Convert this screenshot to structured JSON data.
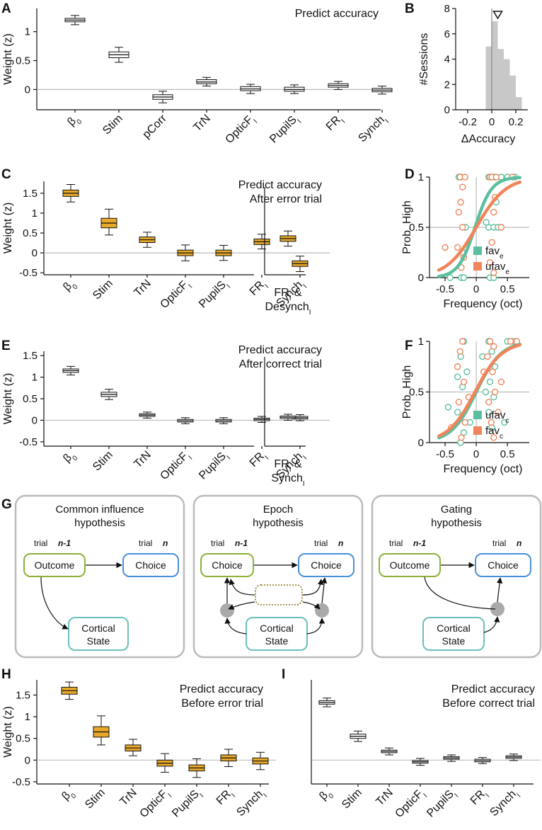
{
  "panel_letters": {
    "A": "A",
    "B": "B",
    "C": "C",
    "D": "D",
    "E": "E",
    "F": "F",
    "G": "G",
    "H": "H",
    "I": "I"
  },
  "colors": {
    "box_gray_fill": "#ffffff",
    "box_gold_fill": "#e8a92a",
    "hist_fill": "#c8c8c8",
    "fav_teal": "#5bbf9f",
    "ufav_orange": "#f0845a",
    "green_node": "#8cb13a",
    "blue_node": "#4a90d9",
    "cyan_node": "#6cc0bc",
    "olive_dots": "#8a7420",
    "panel_border": "#bbbbbb"
  },
  "chart_data": [
    {
      "id": "A",
      "type": "box",
      "title": "Predict accuracy",
      "ylabel": "Weight (z)",
      "ylim": [
        -0.35,
        1.4
      ],
      "yticks": [
        "0",
        "0.5",
        "1"
      ],
      "ytick_values": [
        0,
        0.5,
        1
      ],
      "fill": "white",
      "boxes": [
        {
          "base": "β",
          "sub": "0",
          "median": 1.2,
          "q1": 1.17,
          "q3": 1.23,
          "lo": 1.12,
          "hi": 1.28
        },
        {
          "base": "Stim",
          "sub": "",
          "median": 0.6,
          "q1": 0.55,
          "q3": 0.65,
          "lo": 0.47,
          "hi": 0.73
        },
        {
          "base": "pCorr",
          "sub": "",
          "median": -0.13,
          "q1": -0.17,
          "q3": -0.09,
          "lo": -0.23,
          "hi": -0.03
        },
        {
          "base": "TrN",
          "sub": "",
          "median": 0.13,
          "q1": 0.1,
          "q3": 0.17,
          "lo": 0.06,
          "hi": 0.21
        },
        {
          "base": "OpticF",
          "sub": "I",
          "median": 0.01,
          "q1": -0.02,
          "q3": 0.05,
          "lo": -0.07,
          "hi": 0.09
        },
        {
          "base": "PupilS",
          "sub": "I",
          "median": 0.0,
          "q1": -0.03,
          "q3": 0.04,
          "lo": -0.07,
          "hi": 0.08
        },
        {
          "base": "FR",
          "sub": "I",
          "median": 0.07,
          "q1": 0.04,
          "q3": 0.1,
          "lo": 0.0,
          "hi": 0.14
        },
        {
          "base": "Synch",
          "sub": "I",
          "median": -0.01,
          "q1": -0.04,
          "q3": 0.02,
          "lo": -0.08,
          "hi": 0.06
        }
      ]
    },
    {
      "id": "B",
      "type": "histogram",
      "ylabel": "#Sessions",
      "xlabel": "ΔAccuracy",
      "xlim": [
        -0.3,
        0.3
      ],
      "ylim": [
        0,
        8
      ],
      "xticks": [
        "-0.2",
        "0",
        "0.2"
      ],
      "xtick_values": [
        -0.2,
        0,
        0.2
      ],
      "yticks": [
        "0",
        "2",
        "4",
        "6",
        "8"
      ],
      "ytick_values": [
        0,
        2,
        4,
        6,
        8
      ],
      "bin_edges": [
        -0.05,
        0.0,
        0.05,
        0.1,
        0.15,
        0.2,
        0.25
      ],
      "counts": [
        5,
        7,
        4.8,
        4,
        2.7,
        1
      ],
      "mean_marker": 0.05
    },
    {
      "id": "C",
      "type": "box",
      "title": [
        "Predict accuracy",
        "After error trial"
      ],
      "ylabel": "Weight (z)",
      "ylim": [
        -0.55,
        1.8
      ],
      "yticks": [
        "-0.5",
        "0",
        "0.5",
        "1",
        "1.5"
      ],
      "ytick_values": [
        -0.5,
        0,
        0.5,
        1,
        1.5
      ],
      "fill": "gold",
      "boxes": [
        {
          "base": "β",
          "sub": "0",
          "median": 1.5,
          "q1": 1.42,
          "q3": 1.58,
          "lo": 1.28,
          "hi": 1.72
        },
        {
          "base": "Stim",
          "sub": "",
          "median": 0.75,
          "q1": 0.63,
          "q3": 0.87,
          "lo": 0.45,
          "hi": 1.1
        },
        {
          "base": "TrN",
          "sub": "",
          "median": 0.33,
          "q1": 0.26,
          "q3": 0.4,
          "lo": 0.14,
          "hi": 0.52
        },
        {
          "base": "OpticF",
          "sub": "I",
          "median": 0.0,
          "q1": -0.07,
          "q3": 0.07,
          "lo": -0.2,
          "hi": 0.2
        },
        {
          "base": "PupilS",
          "sub": "I",
          "median": 0.0,
          "q1": -0.07,
          "q3": 0.07,
          "lo": -0.19,
          "hi": 0.19
        },
        {
          "base": "FR",
          "sub": "I",
          "median": 0.28,
          "q1": 0.21,
          "q3": 0.35,
          "lo": 0.1,
          "hi": 0.47
        },
        {
          "base": "Synch",
          "sub": "I",
          "median": -0.27,
          "q1": -0.34,
          "q3": -0.2,
          "lo": -0.47,
          "hi": -0.08
        }
      ],
      "extra_box": {
        "line1": "FR",
        "line1_sub": "I",
        "line1_suffix": " &",
        "line2": "Desynch",
        "line2_sub": "I",
        "median": 0.36,
        "q1": 0.29,
        "q3": 0.43,
        "lo": 0.17,
        "hi": 0.55
      }
    },
    {
      "id": "D",
      "type": "scatter",
      "ylabel": "Prob. High",
      "xlabel": "Frequency (oct)",
      "xlim": [
        -0.75,
        0.85
      ],
      "ylim": [
        0,
        1
      ],
      "xticks": [
        "-0.5",
        "0",
        "0.5"
      ],
      "xtick_values": [
        -0.5,
        0,
        0.5
      ],
      "yticks": [
        "0",
        "0.5",
        "1"
      ],
      "ytick_values": [
        0,
        0.5,
        1
      ],
      "series": [
        {
          "name": "fav",
          "sub": "e",
          "color": "teal",
          "curve": {
            "x0": -0.02,
            "k": 7.5
          },
          "points": [
            [
              -0.24,
              0
            ],
            [
              -0.2,
              0
            ],
            [
              -0.28,
              1
            ],
            [
              -0.25,
              1
            ],
            [
              0.2,
              1
            ],
            [
              0.25,
              1
            ],
            [
              0.3,
              1
            ],
            [
              0.22,
              0
            ],
            [
              0.28,
              0
            ],
            [
              0.5,
              1
            ],
            [
              0.62,
              1
            ],
            [
              0.2,
              0.5
            ],
            [
              0.28,
              0.5
            ],
            [
              -0.22,
              0.25
            ],
            [
              0.32,
              0.75
            ],
            [
              -0.42,
              0
            ],
            [
              -0.17,
              0.5
            ],
            [
              0.16,
              0.55
            ],
            [
              0.4,
              1
            ],
            [
              0.35,
              0.5
            ]
          ]
        },
        {
          "name": "ufav",
          "sub": "e",
          "color": "orange",
          "curve": {
            "x0": 0.0,
            "k": 4.2
          },
          "points": [
            [
              -0.24,
              0.1
            ],
            [
              -0.2,
              0.2
            ],
            [
              -0.3,
              0.3
            ],
            [
              -0.28,
              0.65
            ],
            [
              -0.25,
              0.75
            ],
            [
              -0.22,
              0.9
            ],
            [
              -0.26,
              1
            ],
            [
              -0.22,
              0.5
            ],
            [
              -0.5,
              0.3
            ],
            [
              0.22,
              1
            ],
            [
              0.25,
              1
            ],
            [
              0.3,
              0.8
            ],
            [
              0.28,
              0.65
            ],
            [
              0.22,
              0.15
            ],
            [
              0.28,
              0.05
            ],
            [
              0.4,
              0.5
            ],
            [
              0.58,
              1
            ],
            [
              0.25,
              0.35
            ],
            [
              -0.18,
              1
            ],
            [
              0.32,
              1
            ]
          ]
        }
      ]
    },
    {
      "id": "E",
      "type": "box",
      "title": [
        "Predict accuracy",
        "After correct trial"
      ],
      "ylabel": "Weight (z)",
      "ylim": [
        -0.6,
        1.6
      ],
      "yticks": [
        "-0.5",
        "0",
        "0.5",
        "1",
        "1.5"
      ],
      "ytick_values": [
        -0.5,
        0,
        0.5,
        1,
        1.5
      ],
      "fill": "white",
      "boxes": [
        {
          "base": "β",
          "sub": "0",
          "median": 1.15,
          "q1": 1.11,
          "q3": 1.19,
          "lo": 1.05,
          "hi": 1.25
        },
        {
          "base": "Stim",
          "sub": "",
          "median": 0.6,
          "q1": 0.55,
          "q3": 0.65,
          "lo": 0.48,
          "hi": 0.72
        },
        {
          "base": "TrN",
          "sub": "",
          "median": 0.12,
          "q1": 0.09,
          "q3": 0.15,
          "lo": 0.05,
          "hi": 0.19
        },
        {
          "base": "OpticF",
          "sub": "I",
          "median": -0.01,
          "q1": -0.04,
          "q3": 0.02,
          "lo": -0.08,
          "hi": 0.06
        },
        {
          "base": "PupilS",
          "sub": "I",
          "median": -0.01,
          "q1": -0.04,
          "q3": 0.02,
          "lo": -0.08,
          "hi": 0.06
        },
        {
          "base": "FR",
          "sub": "I",
          "median": 0.02,
          "q1": -0.01,
          "q3": 0.05,
          "lo": -0.05,
          "hi": 0.09
        },
        {
          "base": "Synch",
          "sub": "I",
          "median": 0.06,
          "q1": 0.03,
          "q3": 0.09,
          "lo": -0.01,
          "hi": 0.13
        }
      ],
      "extra_box": {
        "line1": "FR",
        "line1_sub": "I",
        "line1_suffix": " &",
        "line2": "Synch",
        "line2_sub": "I",
        "median": 0.07,
        "q1": 0.04,
        "q3": 0.1,
        "lo": 0.0,
        "hi": 0.14
      }
    },
    {
      "id": "F",
      "type": "scatter",
      "ylabel": "Prob. High",
      "xlabel": "Frequency (oct)",
      "xlim": [
        -0.75,
        0.85
      ],
      "ylim": [
        0,
        1
      ],
      "xticks": [
        "-0.5",
        "0",
        "0.5"
      ],
      "xtick_values": [
        -0.5,
        0,
        0.5
      ],
      "yticks": [
        "0",
        "0.5",
        "1"
      ],
      "ytick_values": [
        0,
        0.5,
        1
      ],
      "series": [
        {
          "name": "ufav",
          "sub": "c",
          "color": "teal",
          "curve": {
            "x0": 0.0,
            "k": 5.0
          },
          "points": [
            [
              -0.25,
              0
            ],
            [
              -0.2,
              0.1
            ],
            [
              -0.3,
              0.3
            ],
            [
              -0.22,
              0.55
            ],
            [
              -0.15,
              0.7
            ],
            [
              -0.25,
              0.85
            ],
            [
              -0.2,
              1
            ],
            [
              0.2,
              1
            ],
            [
              0.25,
              0.9
            ],
            [
              0.3,
              0.75
            ],
            [
              0.22,
              0.6
            ],
            [
              0.28,
              0.45
            ],
            [
              0.2,
              0.3
            ],
            [
              0.25,
              0.15
            ],
            [
              0.45,
              0.2
            ],
            [
              0.5,
              1
            ],
            [
              0.6,
              1
            ],
            [
              -0.45,
              0.35
            ],
            [
              -0.1,
              0.2
            ],
            [
              0.1,
              0.85
            ],
            [
              0.15,
              0.5
            ],
            [
              -0.3,
              0.65
            ]
          ]
        },
        {
          "name": "fav",
          "sub": "c",
          "color": "orange",
          "curve": {
            "x0": -0.02,
            "k": 4.6
          },
          "points": [
            [
              -0.24,
              0.05
            ],
            [
              -0.18,
              0.2
            ],
            [
              -0.28,
              0.4
            ],
            [
              -0.2,
              0.6
            ],
            [
              -0.26,
              0.9
            ],
            [
              -0.22,
              1
            ],
            [
              0.22,
              1
            ],
            [
              0.28,
              0.95
            ],
            [
              0.26,
              0.7
            ],
            [
              0.3,
              0.5
            ],
            [
              0.2,
              0.4
            ],
            [
              0.24,
              0.2
            ],
            [
              0.28,
              0.05
            ],
            [
              0.4,
              0.6
            ],
            [
              0.55,
              1
            ],
            [
              0.65,
              1
            ],
            [
              -0.4,
              0.15
            ],
            [
              -0.12,
              0.45
            ],
            [
              0.12,
              0.7
            ],
            [
              0.35,
              0.3
            ],
            [
              0.18,
              0.85
            ],
            [
              -0.3,
              0.75
            ]
          ]
        }
      ]
    },
    {
      "id": "H",
      "type": "box",
      "title": [
        "Predict accuracy",
        "Before error trial"
      ],
      "ylabel": "Weight (z)",
      "ylim": [
        -0.55,
        1.85
      ],
      "yticks": [
        "-0.5",
        "0",
        "0.5",
        "1",
        "1.5"
      ],
      "ytick_values": [
        -0.5,
        0,
        0.5,
        1,
        1.5
      ],
      "fill": "gold",
      "boxes": [
        {
          "base": "β",
          "sub": "0",
          "median": 1.6,
          "q1": 1.52,
          "q3": 1.68,
          "lo": 1.4,
          "hi": 1.8
        },
        {
          "base": "Stim",
          "sub": "",
          "median": 0.65,
          "q1": 0.53,
          "q3": 0.77,
          "lo": 0.35,
          "hi": 1.02
        },
        {
          "base": "TrN",
          "sub": "",
          "median": 0.28,
          "q1": 0.21,
          "q3": 0.35,
          "lo": 0.1,
          "hi": 0.48
        },
        {
          "base": "OpticF",
          "sub": "I",
          "median": -0.07,
          "q1": -0.14,
          "q3": 0.0,
          "lo": -0.28,
          "hi": 0.15
        },
        {
          "base": "PupilS",
          "sub": "I",
          "median": -0.18,
          "q1": -0.25,
          "q3": -0.11,
          "lo": -0.4,
          "hi": 0.03
        },
        {
          "base": "FR",
          "sub": "I",
          "median": 0.05,
          "q1": -0.02,
          "q3": 0.12,
          "lo": -0.15,
          "hi": 0.25
        },
        {
          "base": "Synch",
          "sub": "I",
          "median": -0.02,
          "q1": -0.09,
          "q3": 0.05,
          "lo": -0.22,
          "hi": 0.18
        }
      ]
    },
    {
      "id": "I",
      "type": "box",
      "title": [
        "Predict accuracy",
        "Before correct trial"
      ],
      "ylabel": "",
      "ylim": [
        -0.55,
        1.85
      ],
      "yticks": [],
      "ytick_values": [],
      "fill": "white",
      "boxes": [
        {
          "base": "β",
          "sub": "0",
          "median": 1.33,
          "q1": 1.29,
          "q3": 1.37,
          "lo": 1.23,
          "hi": 1.43
        },
        {
          "base": "Stim",
          "sub": "",
          "median": 0.55,
          "q1": 0.5,
          "q3": 0.6,
          "lo": 0.43,
          "hi": 0.67
        },
        {
          "base": "TrN",
          "sub": "",
          "median": 0.2,
          "q1": 0.17,
          "q3": 0.23,
          "lo": 0.12,
          "hi": 0.28
        },
        {
          "base": "OpticF",
          "sub": "I",
          "median": -0.04,
          "q1": -0.07,
          "q3": -0.01,
          "lo": -0.12,
          "hi": 0.04
        },
        {
          "base": "PupilS",
          "sub": "I",
          "median": 0.05,
          "q1": 0.02,
          "q3": 0.08,
          "lo": -0.03,
          "hi": 0.12
        },
        {
          "base": "FR",
          "sub": "I",
          "median": -0.01,
          "q1": -0.04,
          "q3": 0.02,
          "lo": -0.08,
          "hi": 0.06
        },
        {
          "base": "Synch",
          "sub": "I",
          "median": 0.07,
          "q1": 0.04,
          "q3": 0.1,
          "lo": -0.01,
          "hi": 0.14
        }
      ]
    }
  ],
  "diagram": {
    "panels": [
      {
        "title_line1": "Common influence",
        "title_line2": "hypothesis",
        "trial_prev": "trial",
        "trial_prev_n": "n-1",
        "trial_cur": "trial",
        "trial_cur_n": "n",
        "node_left": "Outcome",
        "node_right": "Choice",
        "node_bottom_line1": "Cortical",
        "node_bottom_line2": "State"
      },
      {
        "title_line1": "Epoch",
        "title_line2": "hypothesis",
        "trial_prev": "trial",
        "trial_prev_n": "n-1",
        "trial_cur": "trial",
        "trial_cur_n": "n",
        "node_left": "Choice",
        "node_right": "Choice",
        "node_bottom_line1": "Cortical",
        "node_bottom_line2": "State"
      },
      {
        "title_line1": "Gating",
        "title_line2": "hypothesis",
        "trial_prev": "trial",
        "trial_prev_n": "n-1",
        "trial_cur": "trial",
        "trial_cur_n": "n",
        "node_left": "Outcome",
        "node_right": "Choice",
        "node_bottom_line1": "Cortical",
        "node_bottom_line2": "State"
      }
    ]
  }
}
